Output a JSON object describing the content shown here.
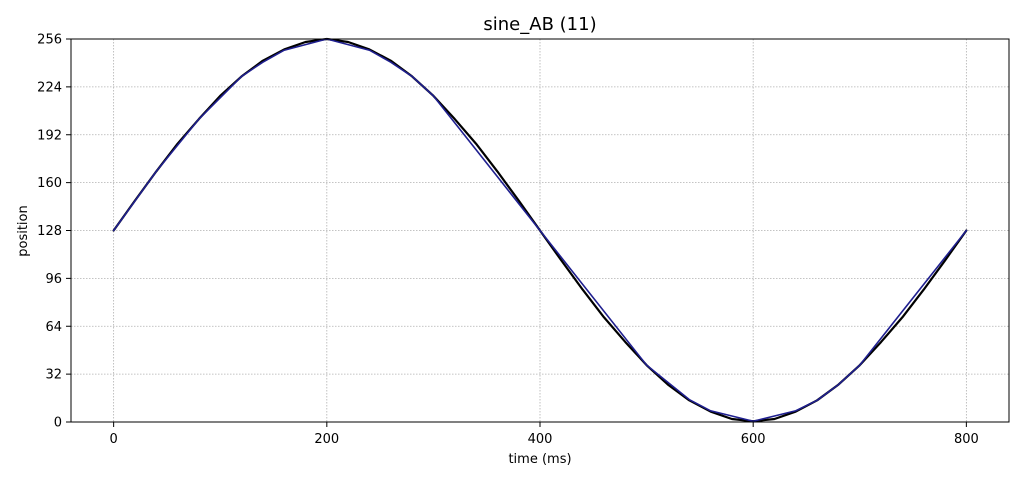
{
  "chart_data": {
    "type": "line",
    "title": "sine_AB (11)",
    "xlabel": "time (ms)",
    "ylabel": "position",
    "xlim": [
      -40,
      840
    ],
    "ylim": [
      0,
      256
    ],
    "xticks": [
      0,
      200,
      400,
      600,
      800
    ],
    "yticks": [
      0,
      32,
      64,
      96,
      128,
      160,
      192,
      224,
      256
    ],
    "grid": true,
    "series": [
      {
        "color": "#000000",
        "x": [
          0,
          20,
          40,
          60,
          80,
          100,
          120,
          140,
          160,
          180,
          200,
          220,
          240,
          260,
          280,
          300,
          320,
          340,
          360,
          380,
          400,
          420,
          440,
          460,
          480,
          500,
          520,
          540,
          560,
          580,
          600,
          620,
          640,
          660,
          680,
          700,
          720,
          740,
          760,
          780,
          800
        ],
        "y": [
          128,
          148,
          167.5,
          186,
          202.5,
          218,
          231,
          241.5,
          249,
          254,
          256,
          254,
          249,
          241.5,
          231,
          218,
          202.5,
          186,
          167.5,
          148,
          128,
          108,
          88.5,
          70,
          53.5,
          38,
          25,
          14.5,
          7,
          2,
          0.5,
          2,
          7,
          14.5,
          25,
          38,
          53.5,
          70,
          88.5,
          108,
          128
        ]
      },
      {
        "color": "#1f1f8f",
        "x": [
          0,
          40,
          80,
          120,
          140,
          160,
          200,
          240,
          260,
          280,
          300,
          400,
          500,
          540,
          560,
          600,
          640,
          660,
          680,
          700,
          800
        ],
        "y": [
          128,
          167.5,
          202.5,
          231,
          240.5,
          248.5,
          256,
          248.5,
          240.5,
          231,
          218,
          128,
          38,
          15,
          7.5,
          0.5,
          7.5,
          14.5,
          25,
          38,
          128
        ]
      }
    ]
  }
}
